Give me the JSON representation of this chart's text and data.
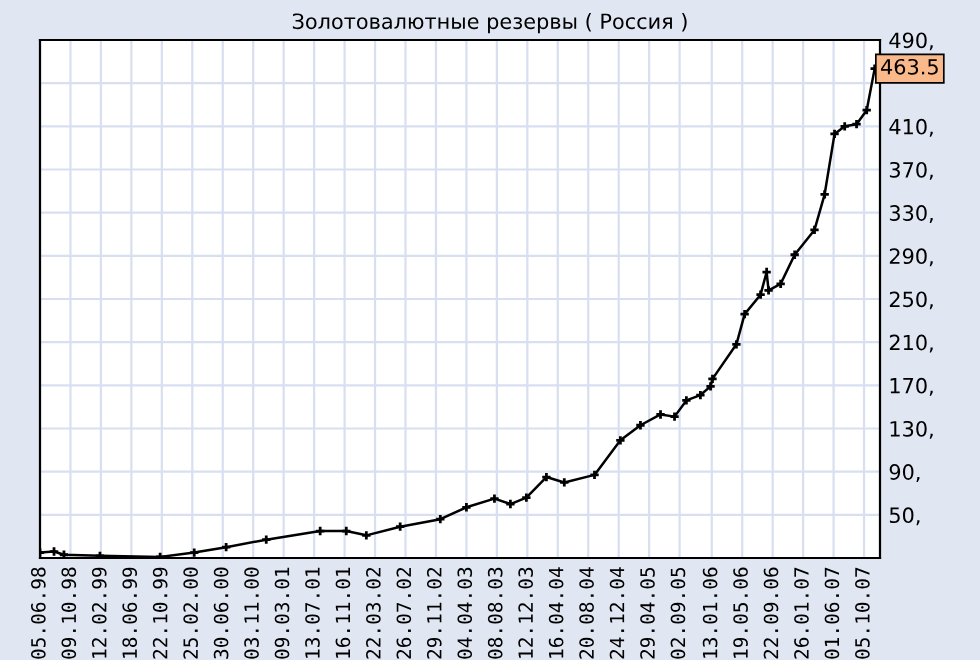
{
  "chart_data": {
    "type": "line",
    "title": "Золотовалютные резервы ( Россия )",
    "x": [
      "1998-06-05",
      "1998-08-02",
      "1998-09-12",
      "1999-02-08",
      "1999-10-15",
      "2000-03-04",
      "2000-07-14",
      "2000-12-27",
      "2001-08-07",
      "2001-11-23",
      "2002-02-14",
      "2002-07-04",
      "2002-12-17",
      "2003-04-04",
      "2003-07-29",
      "2003-10-03",
      "2003-12-08",
      "2004-02-29",
      "2004-05-13",
      "2004-09-15",
      "2004-12-31",
      "2005-03-24",
      "2005-06-15",
      "2005-08-12",
      "2005-09-30",
      "2005-11-27",
      "2006-01-08",
      "2006-01-16",
      "2006-04-25",
      "2006-05-29",
      "2006-08-03",
      "2006-08-28",
      "2006-09-05",
      "2006-10-25",
      "2006-12-22",
      "2007-03-14",
      "2007-04-25",
      "2007-06-05",
      "2007-07-17",
      "2007-09-04",
      "2007-10-16",
      "2007-11-18"
    ],
    "series": [
      {
        "color": "#000000",
        "values": [
          15,
          16,
          13,
          12,
          11,
          15,
          20,
          27,
          35,
          35,
          31,
          39,
          46,
          57,
          65,
          60,
          66,
          85,
          80,
          87,
          119,
          133,
          143,
          141,
          156,
          161,
          169,
          176,
          208,
          236,
          254,
          275,
          258,
          264,
          291,
          314,
          347,
          403,
          410,
          412,
          425,
          463.5
        ]
      }
    ],
    "annotations": [
      {
        "text": "463.5",
        "x": "2007-11-18",
        "y": 463.5
      }
    ],
    "xlim": [
      "1998-06-05",
      "2007-12-10"
    ],
    "xticks": [
      {
        "value": "1998-06-05",
        "label": "05.06.98"
      },
      {
        "value": "1998-10-09",
        "label": "09.10.98"
      },
      {
        "value": "1999-02-12",
        "label": "12.02.99"
      },
      {
        "value": "1999-06-18",
        "label": "18.06.99"
      },
      {
        "value": "1999-10-22",
        "label": "22.10.99"
      },
      {
        "value": "2000-02-25",
        "label": "25.02.00"
      },
      {
        "value": "2000-06-30",
        "label": "30.06.00"
      },
      {
        "value": "2000-11-03",
        "label": "03.11.00"
      },
      {
        "value": "2001-03-09",
        "label": "09.03.01"
      },
      {
        "value": "2001-07-13",
        "label": "13.07.01"
      },
      {
        "value": "2001-11-16",
        "label": "16.11.01"
      },
      {
        "value": "2002-03-22",
        "label": "22.03.02"
      },
      {
        "value": "2002-07-26",
        "label": "26.07.02"
      },
      {
        "value": "2002-11-29",
        "label": "29.11.02"
      },
      {
        "value": "2003-04-04",
        "label": "04.04.03"
      },
      {
        "value": "2003-08-08",
        "label": "08.08.03"
      },
      {
        "value": "2003-12-12",
        "label": "12.12.03"
      },
      {
        "value": "2004-04-16",
        "label": "16.04.04"
      },
      {
        "value": "2004-08-20",
        "label": "20.08.04"
      },
      {
        "value": "2004-12-24",
        "label": "24.12.04"
      },
      {
        "value": "2005-04-29",
        "label": "29.04.05"
      },
      {
        "value": "2005-09-02",
        "label": "02.09.05"
      },
      {
        "value": "2006-01-13",
        "label": "13.01.06"
      },
      {
        "value": "2006-05-19",
        "label": "19.05.06"
      },
      {
        "value": "2006-09-22",
        "label": "22.09.06"
      },
      {
        "value": "2007-01-26",
        "label": "26.01.07"
      },
      {
        "value": "2007-06-01",
        "label": "01.06.07"
      },
      {
        "value": "2007-10-05",
        "label": "05.10.07"
      }
    ],
    "ylim": [
      10,
      490
    ],
    "yticks": [
      {
        "value": 50,
        "label": "50,"
      },
      {
        "value": 90,
        "label": "90,"
      },
      {
        "value": 130,
        "label": "130,"
      },
      {
        "value": 170,
        "label": "170,"
      },
      {
        "value": 210,
        "label": "210,"
      },
      {
        "value": 250,
        "label": "250,"
      },
      {
        "value": 290,
        "label": "290,"
      },
      {
        "value": 330,
        "label": "330,"
      },
      {
        "value": 370,
        "label": "370,"
      },
      {
        "value": 410,
        "label": "410,"
      },
      {
        "value": 450,
        "label": null
      },
      {
        "value": 490,
        "label": "490,"
      }
    ],
    "grid": true,
    "marker": "cross",
    "line_style": "solid"
  }
}
